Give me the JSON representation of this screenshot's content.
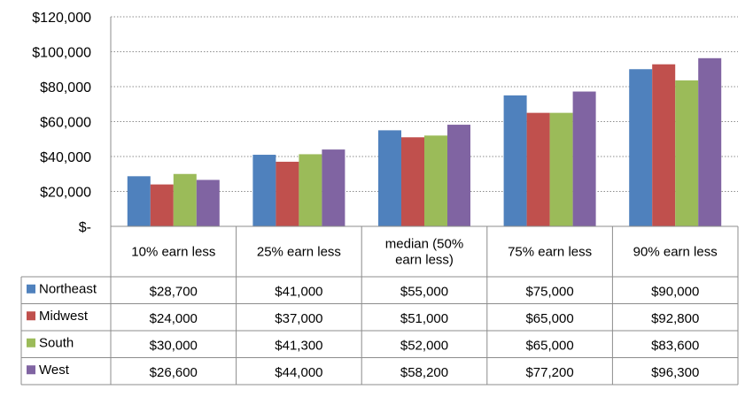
{
  "chart_data": {
    "type": "bar",
    "categories": [
      "10% earn less",
      "25% earn less",
      "median (50% earn less)",
      "75% earn less",
      "90% earn less"
    ],
    "category_lines": [
      [
        "10% earn less"
      ],
      [
        "25% earn less"
      ],
      [
        "median (50%",
        "earn less)"
      ],
      [
        "75% earn less"
      ],
      [
        "90% earn less"
      ]
    ],
    "series": [
      {
        "name": "Northeast",
        "color": "#4F81BD",
        "values": [
          28700,
          41000,
          55000,
          75000,
          90000
        ],
        "labels": [
          "$28,700",
          "$41,000",
          "$55,000",
          "$75,000",
          "$90,000"
        ]
      },
      {
        "name": "Midwest",
        "color": "#C0504D",
        "values": [
          24000,
          37000,
          51000,
          65000,
          92800
        ],
        "labels": [
          "$24,000",
          "$37,000",
          "$51,000",
          "$65,000",
          "$92,800"
        ]
      },
      {
        "name": "South",
        "color": "#9BBB59",
        "values": [
          30000,
          41300,
          52000,
          65000,
          83600
        ],
        "labels": [
          "$30,000",
          "$41,300",
          "$52,000",
          "$65,000",
          "$83,600"
        ]
      },
      {
        "name": "West",
        "color": "#8064A2",
        "values": [
          26600,
          44000,
          58200,
          77200,
          96300
        ],
        "labels": [
          "$26,600",
          "$44,000",
          "$58,200",
          "$77,200",
          "$96,300"
        ]
      }
    ],
    "ylim": [
      0,
      120000
    ],
    "yticks": [
      0,
      20000,
      40000,
      60000,
      80000,
      100000,
      120000
    ],
    "ytick_labels": [
      "$-",
      "$20,000",
      "$40,000",
      "$60,000",
      "$80,000",
      "$100,000",
      "$120,000"
    ],
    "grid": true,
    "legend": "data-table-left",
    "title": "",
    "xlabel": "",
    "ylabel": ""
  }
}
